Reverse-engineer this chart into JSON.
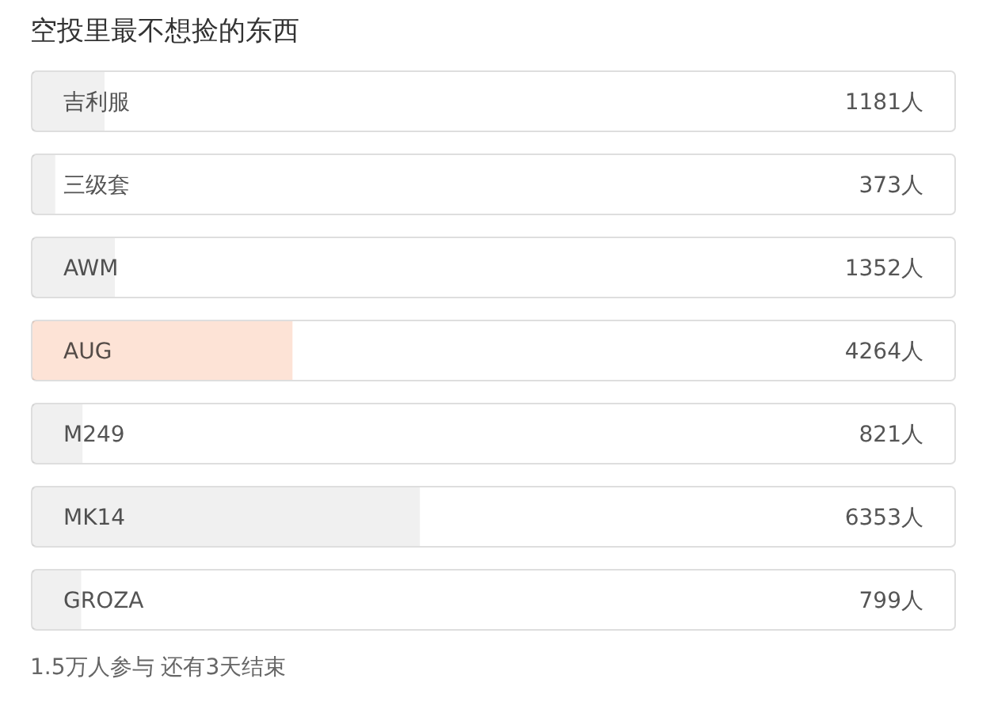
{
  "chart_data": {
    "type": "bar",
    "orientation": "horizontal",
    "title": "空投里最不想捡的东西",
    "categories": [
      "吉利服",
      "三级套",
      "AWM",
      "AUG",
      "M249",
      "MK14",
      "GROZA"
    ],
    "values": [
      1181,
      373,
      1352,
      4264,
      821,
      6353,
      799
    ],
    "colors": [
      "#f0f0f0",
      "#f0f0f0",
      "#f0f0f0",
      "#fde3d6",
      "#f0f0f0",
      "#f0f0f0",
      "#f0f0f0"
    ],
    "value_labels": [
      "1181人",
      "373人",
      "1352人",
      "4264人",
      "821人",
      "6353人",
      "799人"
    ],
    "xlim": [
      0,
      15143
    ],
    "annotations": [
      "1.5万人参与 还有3天结束"
    ]
  }
}
